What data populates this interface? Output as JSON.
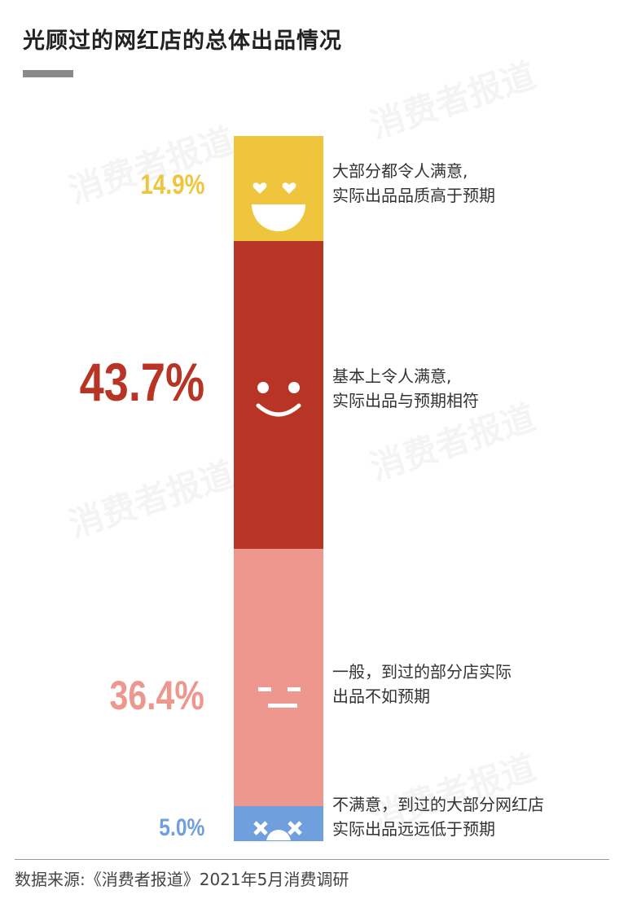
{
  "title": "光顾过的网红店的总体出品情况",
  "watermark": "消费者报道",
  "chart_data": {
    "type": "bar",
    "stacked": true,
    "orientation": "vertical",
    "categories": [
      "大部分都令人满意，实际出品品质高于预期",
      "基本上令人满意，实际出品与预期相符",
      "一般，到过的部分店实际出品不如预期",
      "不满意，到过的大部分网红店实际出品远远低于预期"
    ],
    "values": [
      14.9,
      43.7,
      36.4,
      5.0
    ],
    "labels": [
      "14.9%",
      "43.7%",
      "36.4%",
      "5.0%"
    ],
    "desc_lines": [
      [
        "大部分都令人满意,",
        "实际出品品质高于预期"
      ],
      [
        "基本上令人满意,",
        "实际出品与预期相符"
      ],
      [
        "一般，到过的部分店实际",
        "出品不如预期"
      ],
      [
        "不满意，到过的大部分网红店",
        "实际出品远远低于预期"
      ]
    ],
    "colors": [
      "#f0c53e",
      "#b83424",
      "#ee978e",
      "#6f9fdc"
    ],
    "icons": [
      "heart-eyes-face-icon",
      "smile-face-icon",
      "neutral-face-icon",
      "dizzy-sad-face-icon"
    ]
  },
  "source": "数据来源:《消费者报道》2021年5月消费调研"
}
